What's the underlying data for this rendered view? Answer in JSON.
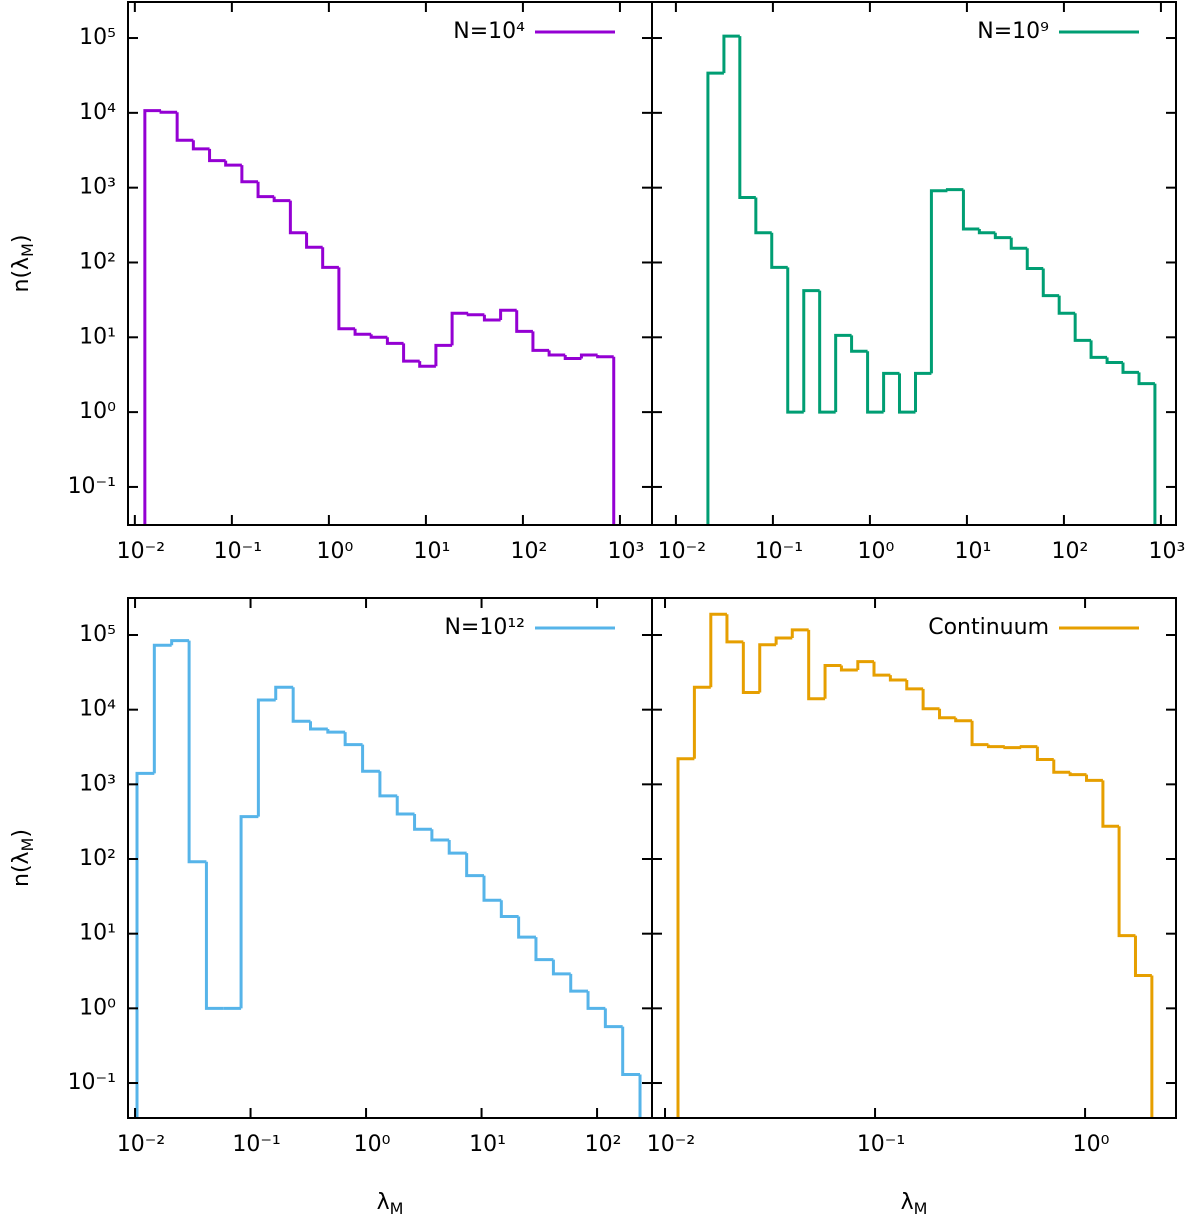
{
  "chart_data": [
    {
      "type": "histogram",
      "series": [
        {
          "name": "N=10⁴",
          "color": "#9400d3",
          "values": [
            10700,
            10200,
            4300,
            3300,
            2300,
            2000,
            1200,
            760,
            670,
            250,
            160,
            86,
            13,
            11,
            10,
            8.3,
            4.8,
            4.1,
            7.8,
            21,
            20,
            17,
            23,
            12,
            6.7,
            5.8,
            5.2,
            5.8,
            5.5
          ]
        }
      ],
      "bins": [
        0.01268,
        0.01862,
        0.02729,
        0.04009,
        0.05888,
        0.0863,
        0.1268,
        0.1862,
        0.2729,
        0.4009,
        0.5888,
        0.863,
        1.268,
        1.862,
        2.729,
        4.009,
        5.888,
        8.63,
        12.68,
        18.62,
        27.29,
        40.09,
        58.88,
        86.3,
        126.8,
        186.2,
        272.9,
        400.9,
        588.8,
        863.0
      ],
      "log_x": true,
      "log_y": true,
      "xlim": [
        0.0085,
        2140
      ],
      "ylim": [
        0.031,
        303000
      ],
      "xticks": [
        {
          "value": 0.01,
          "label": "10⁻²"
        },
        {
          "value": 0.1,
          "label": "10⁻¹"
        },
        {
          "value": 1,
          "label": "10⁰"
        },
        {
          "value": 10,
          "label": "10¹"
        },
        {
          "value": 100,
          "label": "10²"
        },
        {
          "value": 1000,
          "label": "10³"
        }
      ],
      "yticks": [
        {
          "value": 0.1,
          "label": "10⁻¹"
        },
        {
          "value": 1,
          "label": "10⁰"
        },
        {
          "value": 10,
          "label": "10¹"
        },
        {
          "value": 100,
          "label": "10²"
        },
        {
          "value": 1000,
          "label": "10³"
        },
        {
          "value": 10000,
          "label": "10⁴"
        },
        {
          "value": 100000,
          "label": "10⁵"
        }
      ],
      "y_label": [
        "n(λ",
        "M",
        ")"
      ]
    },
    {
      "type": "histogram",
      "series": [
        {
          "name": "N=10⁹",
          "color": "#009e73",
          "values": [
            34000,
            106000,
            740,
            250,
            86,
            1,
            42,
            1,
            10.6,
            6.5,
            1,
            3.3,
            1,
            3.3,
            910,
            940,
            280,
            250,
            215,
            155,
            83,
            36,
            21,
            9.1,
            5.4,
            4.6,
            3.4,
            2.4
          ]
        }
      ],
      "bins": [
        0.02138,
        0.03126,
        0.0456,
        0.06668,
        0.09727,
        0.1422,
        0.208,
        0.3034,
        0.4436,
        0.6471,
        0.9462,
        1.384,
        2.018,
        2.951,
        4.305,
        6.295,
        9.204,
        13.43,
        19.63,
        28.64,
        41.88,
        61.24,
        89.33,
        130.6,
        190.5,
        278.6,
        406.4,
        594.3,
        867.0
      ],
      "log_x": true,
      "log_y": true,
      "xlim": [
        0.00567,
        1430
      ],
      "ylim": [
        0.031,
        303000
      ],
      "xticks": [
        {
          "value": 0.01,
          "label": "10⁻²"
        },
        {
          "value": 0.1,
          "label": "10⁻¹"
        },
        {
          "value": 1,
          "label": "10⁰"
        },
        {
          "value": 10,
          "label": "10¹"
        },
        {
          "value": 100,
          "label": "10²"
        },
        {
          "value": 1000,
          "label": "10³"
        }
      ],
      "yticks": [
        0.1,
        1,
        10,
        100,
        1000,
        10000,
        100000
      ]
    },
    {
      "type": "histogram",
      "series": [
        {
          "name": "N=10¹²",
          "color": "#56b4e9",
          "values": [
            1400,
            73000,
            84000,
            92,
            1,
            1,
            370,
            13500,
            20000,
            7000,
            5500,
            5000,
            3400,
            1500,
            700,
            400,
            250,
            180,
            120,
            60,
            28,
            17,
            9,
            4.5,
            2.9,
            1.7,
            1,
            0.57,
            0.13
          ]
        }
      ],
      "bins": [
        0.0104,
        0.01469,
        0.02075,
        0.02938,
        0.0415,
        0.05861,
        0.08279,
        0.1169,
        0.1652,
        0.2339,
        0.3304,
        0.4667,
        0.6592,
        0.9333,
        1.318,
        1.862,
        2.63,
        3.715,
        5.248,
        7.43,
        10.5,
        14.83,
        20.94,
        29.58,
        41.88,
        59.16,
        83.56,
        118.0,
        166.7,
        235.5
      ],
      "log_x": true,
      "log_y": true,
      "xlim": [
        0.00869,
        299
      ],
      "ylim": [
        0.034,
        313000
      ],
      "xticks": [
        {
          "value": 0.01,
          "label": "10⁻²"
        },
        {
          "value": 0.1,
          "label": "10⁻¹"
        },
        {
          "value": 1,
          "label": "10⁰"
        },
        {
          "value": 10,
          "label": "10¹"
        },
        {
          "value": 100,
          "label": "10²"
        }
      ],
      "yticks": [
        {
          "value": 0.1,
          "label": "10⁻¹"
        },
        {
          "value": 1,
          "label": "10⁰"
        },
        {
          "value": 10,
          "label": "10¹"
        },
        {
          "value": 100,
          "label": "10²"
        },
        {
          "value": 1000,
          "label": "10³"
        },
        {
          "value": 10000,
          "label": "10⁴"
        },
        {
          "value": 100000,
          "label": "10⁵"
        }
      ],
      "x_label": [
        "λ",
        "M"
      ],
      "y_label": [
        "n(λ",
        "M",
        ")"
      ]
    },
    {
      "type": "histogram",
      "series": [
        {
          "name": "Continuum",
          "color": "#e69f00",
          "values": [
            2200,
            20000,
            190000,
            81000,
            17000,
            74000,
            91000,
            117000,
            14000,
            39000,
            34000,
            44000,
            29000,
            25000,
            19000,
            10300,
            7800,
            7100,
            3400,
            3200,
            3100,
            3200,
            2150,
            1450,
            1350,
            1130,
            275,
            9.4,
            2.75
          ]
        }
      ],
      "bins": [
        0.01153,
        0.0138,
        0.01652,
        0.01972,
        0.0236,
        0.02825,
        0.03381,
        0.04036,
        0.04831,
        0.05781,
        0.06918,
        0.08279,
        0.09886,
        0.1183,
        0.1416,
        0.1694,
        0.2028,
        0.2421,
        0.2897,
        0.3467,
        0.415,
        0.4966,
        0.5929,
        0.7096,
        0.8492,
        1.016,
        1.216,
        1.452,
        1.738,
        2.08
      ],
      "log_x": true,
      "log_y": true,
      "xlim": [
        0.00867,
        2.71
      ],
      "ylim": [
        0.034,
        313000
      ],
      "xticks": [
        {
          "value": 0.01,
          "label": "10⁻²"
        },
        {
          "value": 0.1,
          "label": "10⁻¹"
        },
        {
          "value": 1,
          "label": "10⁰"
        }
      ],
      "yticks": [
        0.1,
        1,
        10,
        100,
        1000,
        10000,
        100000
      ],
      "x_label": [
        "λ",
        "M"
      ]
    }
  ]
}
